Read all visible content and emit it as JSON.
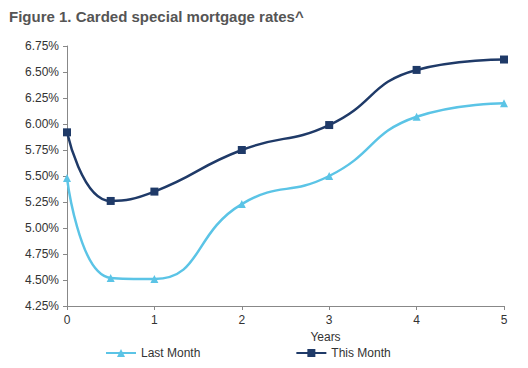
{
  "chart_data": {
    "type": "line",
    "title": "Figure 1. Carded special mortgage rates^",
    "x_label": "Years",
    "x": [
      0,
      0.5,
      1,
      2,
      3,
      4,
      5
    ],
    "series": [
      {
        "name": "Last Month",
        "color": "#5bc4e6",
        "marker": "triangle",
        "line_style": "solid",
        "values": [
          5.48,
          4.52,
          4.51,
          5.23,
          5.5,
          6.07,
          6.2
        ]
      },
      {
        "name": "This Month",
        "color": "#1f3a68",
        "marker": "square",
        "line_style": "solid",
        "values": [
          5.92,
          5.26,
          5.35,
          5.75,
          5.99,
          6.52,
          6.62
        ]
      }
    ],
    "xlim": [
      0,
      5
    ],
    "xticks": [
      0,
      1,
      2,
      3,
      4,
      5
    ],
    "ylim": [
      4.25,
      6.75
    ],
    "yticks": [
      {
        "value": 4.25,
        "label": "4.25%"
      },
      {
        "value": 4.5,
        "label": "4.50%"
      },
      {
        "value": 4.75,
        "label": "4.75%"
      },
      {
        "value": 5.0,
        "label": "5.00%"
      },
      {
        "value": 5.25,
        "label": "5.25%"
      },
      {
        "value": 5.5,
        "label": "5.50%"
      },
      {
        "value": 5.75,
        "label": "5.75%"
      },
      {
        "value": 6.0,
        "label": "6.00%"
      },
      {
        "value": 6.25,
        "label": "6.25%"
      },
      {
        "value": 6.5,
        "label": "6.50%"
      },
      {
        "value": 6.75,
        "label": "6.75%"
      }
    ],
    "grid": false,
    "legend": "bottom"
  }
}
